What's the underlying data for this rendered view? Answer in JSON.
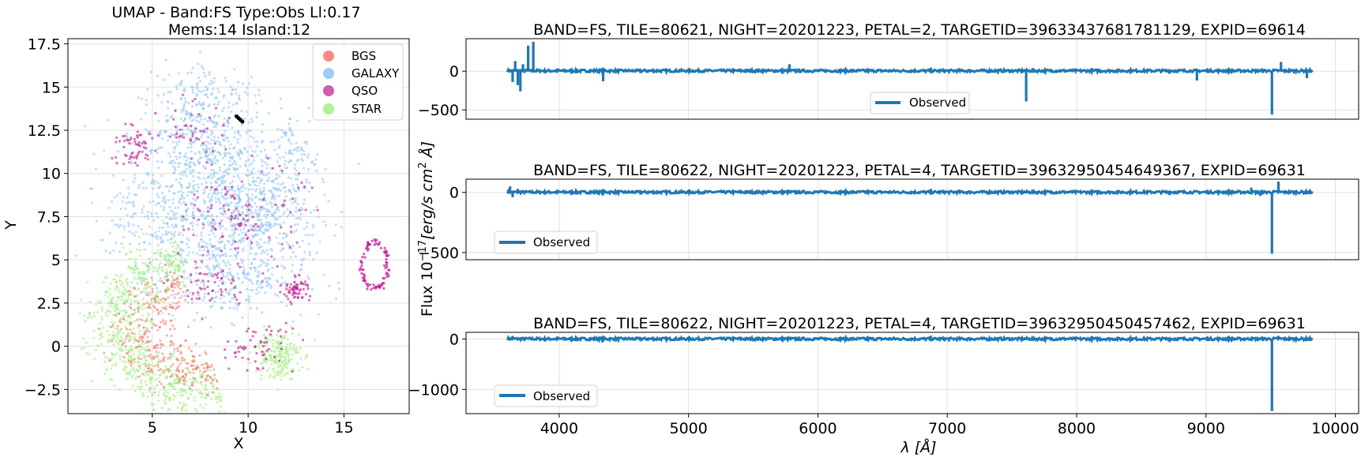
{
  "chart_data": [
    {
      "type": "scatter",
      "title": "UMAP  -  Band:FS Type:Obs Ll:0.17",
      "subtitle": "Mems:14 Island:12",
      "xlabel": "X",
      "ylabel": "Y",
      "xlim": [
        0.6,
        18.4
      ],
      "ylim": [
        -3.9,
        17.8
      ],
      "xticks": [
        5,
        10,
        15
      ],
      "yticks": [
        -2.5,
        0.0,
        2.5,
        5.0,
        7.5,
        10.0,
        12.5,
        15.0,
        17.5
      ],
      "grid": true,
      "legend_position": "top-right",
      "series": [
        {
          "name": "BGS",
          "color": "#f8766d"
        },
        {
          "name": "GALAXY",
          "color": "#8ec2f2"
        },
        {
          "name": "QSO",
          "color": "#c0168f"
        },
        {
          "name": "STAR",
          "color": "#a8f08a"
        }
      ],
      "highlight_points": [
        [
          9.5,
          13.2
        ],
        [
          9.6,
          13.1
        ],
        [
          9.4,
          13.3
        ],
        [
          9.7,
          13.0
        ]
      ],
      "highlight_color": "#000000"
    },
    {
      "type": "line",
      "title": "BAND=FS, TILE=80621, NIGHT=20201223, PETAL=2, TARGETID=39633437681781129, EXPID=69614",
      "series": [
        {
          "name": "Observed",
          "color": "#1f77b4"
        }
      ],
      "legend_position": "lower-center",
      "xlim": [
        3280,
        10180
      ],
      "ylim": [
        -620,
        420
      ],
      "yticks": [
        -500,
        0
      ],
      "grid": true,
      "x_range": [
        3600,
        9824
      ],
      "baseline": 5,
      "features": [
        [
          3640,
          -140
        ],
        [
          3660,
          130
        ],
        [
          3680,
          -180
        ],
        [
          3700,
          -260
        ],
        [
          3720,
          90
        ],
        [
          3760,
          330
        ],
        [
          3800,
          380
        ],
        [
          4340,
          -130
        ],
        [
          5780,
          90
        ],
        [
          7610,
          -390
        ],
        [
          8930,
          -120
        ],
        [
          9510,
          -560
        ],
        [
          9580,
          120
        ],
        [
          9780,
          -90
        ]
      ]
    },
    {
      "type": "line",
      "title": "BAND=FS, TILE=80622, NIGHT=20201223, PETAL=4, TARGETID=39632950454649367, EXPID=69631",
      "series": [
        {
          "name": "Observed",
          "color": "#1f77b4"
        }
      ],
      "legend_position": "lower-left",
      "xlim": [
        3280,
        10180
      ],
      "ylim": [
        -560,
        110
      ],
      "yticks": [
        -500,
        0
      ],
      "grid": true,
      "x_range": [
        3600,
        9824
      ],
      "baseline": 2,
      "features": [
        [
          3620,
          50
        ],
        [
          3640,
          -40
        ],
        [
          3680,
          30
        ],
        [
          9350,
          40
        ],
        [
          9420,
          -30
        ],
        [
          9510,
          -510
        ],
        [
          9560,
          90
        ]
      ]
    },
    {
      "type": "line",
      "title": "BAND=FS, TILE=80622, NIGHT=20201223, PETAL=4, TARGETID=39632950450457462, EXPID=69631",
      "series": [
        {
          "name": "Observed",
          "color": "#1f77b4"
        }
      ],
      "legend_position": "lower-left",
      "xlim": [
        3280,
        10180
      ],
      "ylim": [
        -1480,
        130
      ],
      "xticks": [
        4000,
        5000,
        6000,
        7000,
        8000,
        9000,
        10000
      ],
      "yticks": [
        -1000,
        0
      ],
      "grid": true,
      "x_range": [
        3600,
        9824
      ],
      "baseline": 0,
      "features": [
        [
          3640,
          60
        ],
        [
          9350,
          40
        ],
        [
          9510,
          -1430
        ],
        [
          9560,
          60
        ]
      ]
    }
  ],
  "shared": {
    "ylabel": "Flux $10^{-17}[erg/s\\,cm^2\\,Å]$",
    "xlabel": "λ [Å]"
  },
  "labels": {
    "umap_title": "UMAP  -  Band:FS Type:Obs Ll:0.17",
    "umap_subtitle": "Mems:14 Island:12",
    "umap_xlabel": "X",
    "umap_ylabel": "Y",
    "spec1_title": "BAND=FS, TILE=80621, NIGHT=20201223, PETAL=2, TARGETID=39633437681781129, EXPID=69614",
    "spec2_title": "BAND=FS, TILE=80622, NIGHT=20201223, PETAL=4, TARGETID=39632950454649367, EXPID=69631",
    "spec3_title": "BAND=FS, TILE=80622, NIGHT=20201223, PETAL=4, TARGETID=39632950450457462, EXPID=69631",
    "legend_bgs": "BGS",
    "legend_galaxy": "GALAXY",
    "legend_qso": "QSO",
    "legend_star": "STAR",
    "observed": "Observed",
    "flux_prefix": "Flux 10",
    "flux_exp": "−17",
    "flux_units": "[erg/s cm",
    "flux_sq": "2",
    "flux_end": " Å]",
    "lambda_label": "λ [Å]"
  }
}
